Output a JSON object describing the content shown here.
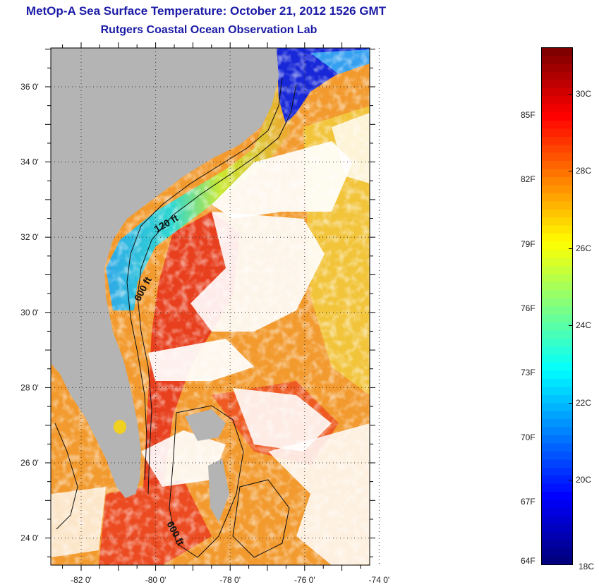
{
  "header": {
    "title": "MetOp-A Sea Surface Temperature:  October 21, 2012 1526 GMT",
    "subtitle": "Rutgers Coastal Ocean Observation Lab"
  },
  "map": {
    "lat_ticks": [
      "36 0'",
      "34 0'",
      "32 0'",
      "30 0'",
      "28 0'",
      "26 0'",
      "24 0'"
    ],
    "lon_ticks": [
      "-82 0'",
      "-80 0'",
      "-78 0'",
      "-76 0'",
      "-74 0'"
    ],
    "contour_labels": [
      "120 ft",
      "600 ft",
      "600 ft"
    ],
    "colors": {
      "land": "#b4b4b4",
      "cloud": "#ffffff",
      "warm_water": "#f07a2a",
      "hot_water": "#e8401e",
      "cool_coast": "#2ec8d8",
      "cold_bay": "#1020d0"
    }
  },
  "colorbar": {
    "fahrenheit_labels": [
      "85F",
      "82F",
      "79F",
      "76F",
      "73F",
      "70F",
      "67F",
      "64F"
    ],
    "celsius_labels": [
      "30C",
      "28C",
      "26C",
      "24C",
      "22C",
      "20C",
      "18C"
    ],
    "range_c": [
      17.8,
      31.2
    ]
  }
}
